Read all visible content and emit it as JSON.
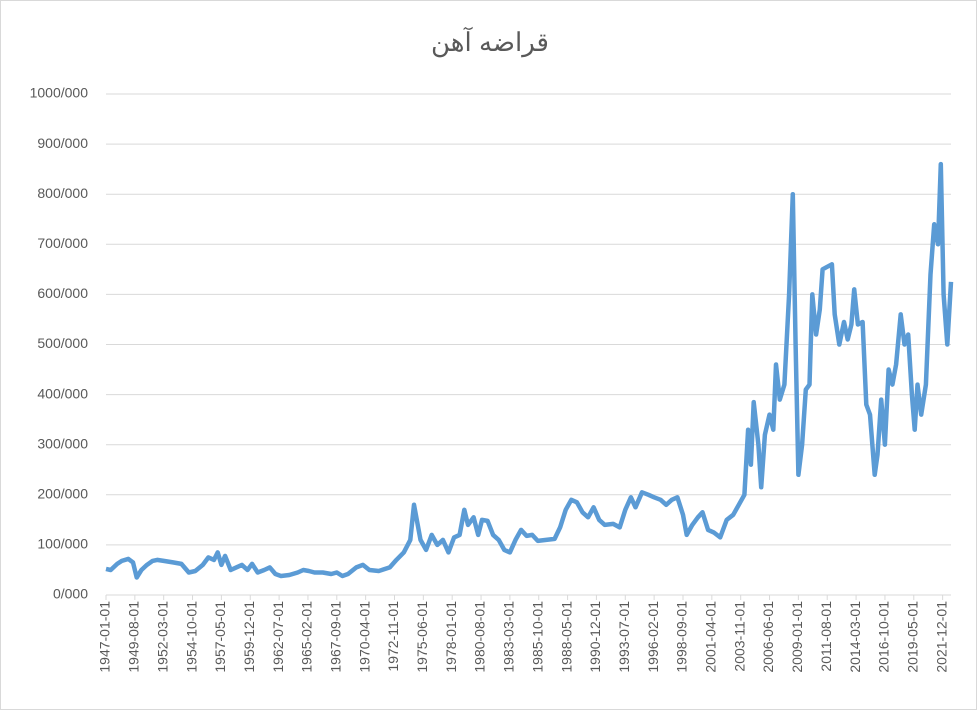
{
  "chart_data": {
    "type": "line",
    "title": "قراضه آهن",
    "x": [
      "1947-01-01",
      "1947-06-01",
      "1948-01-01",
      "1948-06-01",
      "1949-01-01",
      "1949-06-01",
      "1949-10-01",
      "1950-03-01",
      "1950-09-01",
      "1951-03-01",
      "1951-08-01",
      "1952-03-01",
      "1953-01-01",
      "1953-10-01",
      "1954-06-01",
      "1955-01-01",
      "1955-09-01",
      "1956-03-01",
      "1956-09-01",
      "1957-01-01",
      "1957-05-01",
      "1957-09-01",
      "1958-03-01",
      "1958-09-01",
      "1959-03-01",
      "1959-09-01",
      "1960-02-01",
      "1960-08-01",
      "1961-03-01",
      "1961-09-01",
      "1962-03-01",
      "1962-09-01",
      "1963-06-01",
      "1964-03-01",
      "1964-09-01",
      "1965-03-01",
      "1965-09-01",
      "1966-06-01",
      "1967-03-01",
      "1967-09-01",
      "1968-03-01",
      "1968-09-01",
      "1969-06-01",
      "1970-01-01",
      "1970-08-01",
      "1971-06-01",
      "1972-06-01",
      "1973-01-01",
      "1973-09-01",
      "1974-04-01",
      "1974-08-01",
      "1974-11-01",
      "1975-03-01",
      "1975-09-01",
      "1976-03-01",
      "1976-09-01",
      "1977-03-01",
      "1977-09-01",
      "1978-03-01",
      "1978-09-01",
      "1979-02-01",
      "1979-06-01",
      "1979-12-01",
      "1980-05-01",
      "1980-09-01",
      "1981-03-01",
      "1981-09-01",
      "1982-03-01",
      "1982-09-01",
      "1983-03-01",
      "1983-09-01",
      "1984-03-01",
      "1984-09-01",
      "1985-03-01",
      "1985-09-01",
      "1986-06-01",
      "1987-03-01",
      "1987-09-01",
      "1988-03-01",
      "1988-09-01",
      "1989-03-01",
      "1989-09-01",
      "1990-03-01",
      "1990-09-01",
      "1991-03-01",
      "1991-09-01",
      "1992-06-01",
      "1993-01-01",
      "1993-07-01",
      "1994-01-01",
      "1994-06-01",
      "1995-01-01",
      "1995-08-01",
      "1996-02-01",
      "1996-09-01",
      "1997-03-01",
      "1997-09-01",
      "1998-03-01",
      "1998-09-01",
      "1999-01-01",
      "1999-07-01",
      "2000-01-01",
      "2000-06-01",
      "2000-12-01",
      "2001-06-01",
      "2002-01-01",
      "2002-08-01",
      "2003-03-01",
      "2003-09-01",
      "2004-03-01",
      "2004-07-01",
      "2004-10-01",
      "2005-01-01",
      "2005-06-01",
      "2005-09-01",
      "2006-01-01",
      "2006-06-01",
      "2006-10-01",
      "2007-01-01",
      "2007-05-01",
      "2007-10-01",
      "2008-03-01",
      "2008-07-01",
      "2008-10-01",
      "2009-01-01",
      "2009-05-01",
      "2009-09-01",
      "2010-01-01",
      "2010-04-01",
      "2010-08-01",
      "2010-12-01",
      "2011-03-01",
      "2011-08-01",
      "2012-01-01",
      "2012-04-01",
      "2012-09-01",
      "2013-02-01",
      "2013-06-01",
      "2013-10-01",
      "2014-01-01",
      "2014-05-01",
      "2014-10-01",
      "2015-02-01",
      "2015-06-01",
      "2015-11-01",
      "2016-02-01",
      "2016-06-01",
      "2016-10-01",
      "2017-02-01",
      "2017-06-01",
      "2017-10-01",
      "2018-03-01",
      "2018-07-01",
      "2018-11-01",
      "2019-03-01",
      "2019-06-01",
      "2019-09-01",
      "2020-01-01",
      "2020-06-01",
      "2020-11-01",
      "2021-03-01",
      "2021-07-01",
      "2021-10-01",
      "2022-01-01",
      "2022-05-01",
      "2022-09-01"
    ],
    "series": [
      {
        "color": "#5b9bd5",
        "values": [
          52000,
          50000,
          62000,
          68000,
          72000,
          65000,
          35000,
          50000,
          60000,
          68000,
          70000,
          68000,
          65000,
          62000,
          45000,
          48000,
          60000,
          75000,
          70000,
          85000,
          60000,
          78000,
          50000,
          55000,
          60000,
          50000,
          62000,
          45000,
          50000,
          55000,
          42000,
          38000,
          40000,
          45000,
          50000,
          48000,
          45000,
          45000,
          42000,
          45000,
          38000,
          42000,
          55000,
          60000,
          50000,
          48000,
          55000,
          70000,
          85000,
          110000,
          180000,
          150000,
          110000,
          90000,
          120000,
          100000,
          110000,
          85000,
          115000,
          120000,
          170000,
          140000,
          155000,
          120000,
          150000,
          148000,
          120000,
          110000,
          90000,
          85000,
          110000,
          130000,
          118000,
          120000,
          108000,
          110000,
          112000,
          135000,
          170000,
          190000,
          185000,
          165000,
          155000,
          175000,
          150000,
          140000,
          142000,
          135000,
          170000,
          195000,
          175000,
          205000,
          200000,
          195000,
          190000,
          180000,
          190000,
          195000,
          160000,
          120000,
          140000,
          155000,
          165000,
          130000,
          125000,
          115000,
          150000,
          160000,
          180000,
          200000,
          330000,
          260000,
          385000,
          300000,
          215000,
          320000,
          360000,
          330000,
          460000,
          390000,
          420000,
          600000,
          800000,
          500000,
          240000,
          300000,
          410000,
          420000,
          600000,
          520000,
          570000,
          650000,
          655000,
          660000,
          560000,
          500000,
          545000,
          510000,
          540000,
          610000,
          540000,
          545000,
          380000,
          360000,
          240000,
          280000,
          390000,
          300000,
          450000,
          420000,
          460000,
          560000,
          500000,
          520000,
          400000,
          330000,
          420000,
          360000,
          420000,
          640000,
          740000,
          700000,
          860000,
          600000,
          500000,
          625000
        ]
      }
    ],
    "xlim": [
      "1947-01-01",
      "2022-09-01"
    ],
    "xticks": [
      "1947-01-01",
      "1949-08-01",
      "1952-03-01",
      "1954-10-01",
      "1957-05-01",
      "1959-12-01",
      "1962-07-01",
      "1965-02-01",
      "1967-09-01",
      "1970-04-01",
      "1972-11-01",
      "1975-06-01",
      "1978-01-01",
      "1980-08-01",
      "1983-03-01",
      "1985-10-01",
      "1988-05-01",
      "1990-12-01",
      "1993-07-01",
      "1996-02-01",
      "1998-09-01",
      "2001-04-01",
      "2003-11-01",
      "2006-06-01",
      "2009-01-01",
      "2011-08-01",
      "2014-03-01",
      "2016-10-01",
      "2019-05-01",
      "2021-12-01"
    ],
    "ylim": [
      0,
      1000000
    ],
    "yticks": [
      {
        "value": 0,
        "label": "0/000"
      },
      {
        "value": 100000,
        "label": "100/000"
      },
      {
        "value": 200000,
        "label": "200/000"
      },
      {
        "value": 300000,
        "label": "300/000"
      },
      {
        "value": 400000,
        "label": "400/000"
      },
      {
        "value": 500000,
        "label": "500/000"
      },
      {
        "value": 600000,
        "label": "600/000"
      },
      {
        "value": 700000,
        "label": "700/000"
      },
      {
        "value": 800000,
        "label": "800/000"
      },
      {
        "value": 900000,
        "label": "900/000"
      },
      {
        "value": 1000000,
        "label": "1000/000"
      }
    ],
    "grid": true
  }
}
